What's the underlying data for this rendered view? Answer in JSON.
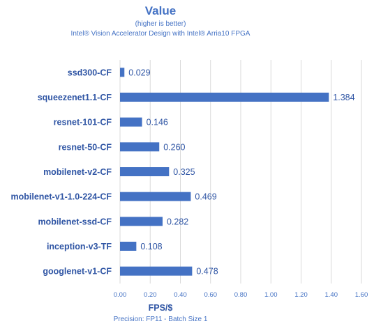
{
  "chart_data": {
    "type": "bar",
    "orientation": "horizontal",
    "title": "Value",
    "subtitle_lines": [
      "(higher is better)",
      "Intel® Vision Accelerator Design with Intel® Arria10 FPGA"
    ],
    "categories": [
      "ssd300-CF",
      "squeezenet1.1-CF",
      "resnet-101-CF",
      "resnet-50-CF",
      "mobilenet-v2-CF",
      "mobilenet-v1-1.0-224-CF",
      "mobilenet-ssd-CF",
      "inception-v3-TF",
      "googlenet-v1-CF"
    ],
    "values": [
      0.029,
      1.384,
      0.146,
      0.26,
      0.325,
      0.469,
      0.282,
      0.108,
      0.478
    ],
    "value_labels": [
      "0.029",
      "1.384",
      "0.146",
      "0.260",
      "0.325",
      "0.469",
      "0.282",
      "0.108",
      "0.478"
    ],
    "xlabel": "FPS/$",
    "note": "Precision: FP11 - Batch Size 1",
    "xlim": [
      0,
      1.6
    ],
    "xticks": [
      0.0,
      0.2,
      0.4,
      0.6,
      0.8,
      1.0,
      1.2,
      1.4,
      1.6
    ],
    "xtick_labels": [
      "0.00",
      "0.20",
      "0.40",
      "0.60",
      "0.80",
      "1.00",
      "1.20",
      "1.40",
      "1.60"
    ],
    "grid": "vertical",
    "legend": "none",
    "colors": {
      "bar": "#4472c4",
      "text": "#2f55a4",
      "grid": "#d9d9d9"
    }
  }
}
